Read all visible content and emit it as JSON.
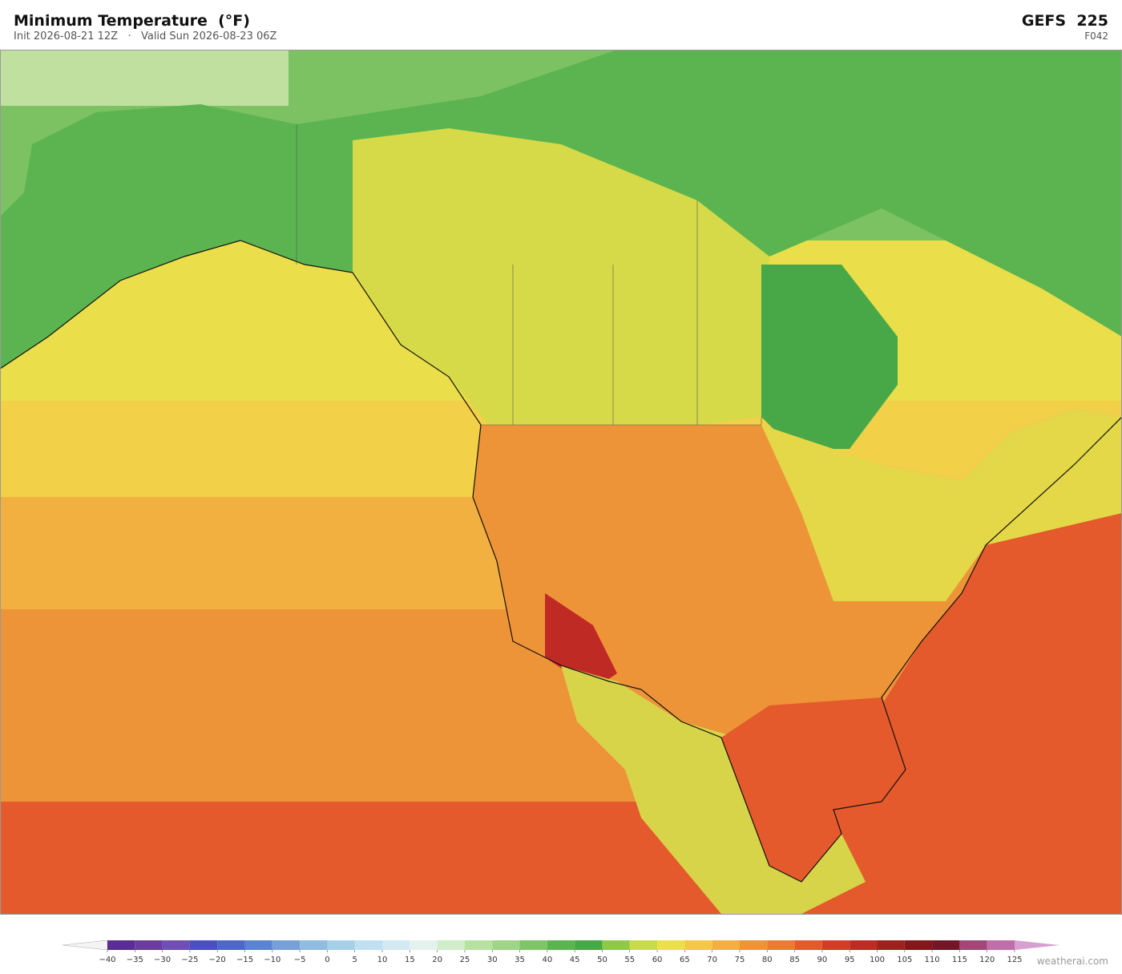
{
  "header": {
    "title": "Minimum Temperature  (°F)",
    "subtitle": "Init 2026-08-21 12Z   ·   Valid Sun 2026-08-23 06Z",
    "model": "GEFS  225",
    "forecast_hour": "F042"
  },
  "colorbar": {
    "ticks": [
      {
        "value": -40,
        "label": "−40"
      },
      {
        "value": -35,
        "label": "−35"
      },
      {
        "value": -30,
        "label": "−30"
      },
      {
        "value": -25,
        "label": "−25"
      },
      {
        "value": -20,
        "label": "−20"
      },
      {
        "value": -15,
        "label": "−15"
      },
      {
        "value": -10,
        "label": "−10"
      },
      {
        "value": -5,
        "label": "−5"
      },
      0,
      5,
      10,
      15,
      20,
      25,
      30,
      35,
      40,
      45,
      50,
      55,
      60,
      65,
      70,
      75,
      80,
      85,
      90,
      95,
      100,
      105,
      110,
      115,
      120,
      125
    ],
    "colors": [
      "#5a2d91",
      "#6a3d9a",
      "#6f4fb0",
      "#4a50c0",
      "#4f68c8",
      "#5a84d0",
      "#78a0d8",
      "#8fbce0",
      "#a6d0e8",
      "#c0dff0",
      "#d4eaf2",
      "#e4f2ee",
      "#d0ecc8",
      "#b8e0a0",
      "#a0d488",
      "#80c468",
      "#5cb450",
      "#48a848",
      "#90c84a",
      "#c8dc48",
      "#ece048",
      "#f4c844",
      "#f2b040",
      "#ee9438",
      "#ec7a34",
      "#e45a2c",
      "#d43c28",
      "#c02a24",
      "#a0201e",
      "#80181c",
      "#701828",
      "#a04878",
      "#c070a8"
    ],
    "under_color": "#f4f4f4",
    "over_color": "#d8a0d0"
  },
  "credit": "weatherai.com"
}
